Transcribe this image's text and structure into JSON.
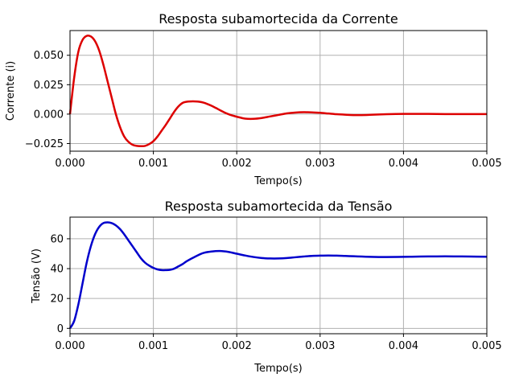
{
  "chart_data": [
    {
      "type": "line",
      "title": "Resposta subamortecida da Corrente",
      "xlabel": "Tempo(s)",
      "ylabel": "Corrente (i)",
      "xlim": [
        0,
        0.005
      ],
      "ylim": [
        -0.0315,
        0.071
      ],
      "xticks": [
        0,
        0.001,
        0.002,
        0.003,
        0.004,
        0.005
      ],
      "xtick_labels": [
        "0.000",
        "0.001",
        "0.002",
        "0.003",
        "0.004",
        "0.005"
      ],
      "yticks": [
        -0.025,
        0,
        0.025,
        0.05
      ],
      "ytick_labels": [
        "−0.025",
        "0.000",
        "0.025",
        "0.050"
      ],
      "grid": true,
      "series": [
        {
          "color": "#dd0000",
          "x": [
            0,
            5e-05,
            0.0001,
            0.00015,
            0.0002,
            0.00025,
            0.0003,
            0.00035,
            0.0004,
            0.00045,
            0.0005,
            0.00055,
            0.0006,
            0.00065,
            0.0007,
            0.00075,
            0.0008,
            0.00085,
            0.0009,
            0.00095,
            0.001,
            0.00105,
            0.0011,
            0.00115,
            0.0012,
            0.00125,
            0.0013,
            0.00135,
            0.0014,
            0.00145,
            0.0015,
            0.00155,
            0.0016,
            0.00165,
            0.0017,
            0.00175,
            0.0018,
            0.00185,
            0.0019,
            0.00195,
            0.002,
            0.0021,
            0.0022,
            0.0023,
            0.0024,
            0.0025,
            0.0026,
            0.0027,
            0.0028,
            0.0029,
            0.003,
            0.0031,
            0.0032,
            0.0033,
            0.0034,
            0.0035,
            0.0036,
            0.0038,
            0.004,
            0.0042,
            0.0044,
            0.0046,
            0.0048,
            0.005
          ],
          "y": [
            0,
            0.031,
            0.053,
            0.063,
            0.0665,
            0.066,
            0.062,
            0.054,
            0.042,
            0.028,
            0.014,
            0.0,
            -0.011,
            -0.019,
            -0.0235,
            -0.026,
            -0.027,
            -0.0272,
            -0.027,
            -0.0255,
            -0.023,
            -0.019,
            -0.014,
            -0.009,
            -0.0035,
            0.002,
            0.0065,
            0.0095,
            0.0105,
            0.0108,
            0.0108,
            0.0105,
            0.0098,
            0.0085,
            0.007,
            0.0052,
            0.0033,
            0.0015,
            0.0,
            -0.0012,
            -0.0022,
            -0.0038,
            -0.004,
            -0.0033,
            -0.002,
            -0.0007,
            0.0006,
            0.0013,
            0.0016,
            0.0015,
            0.0011,
            0.0005,
            -0.0001,
            -0.0005,
            -0.0008,
            -0.0008,
            -0.0006,
            -0.0001,
            0.0002,
            0.0002,
            0.0001,
            0.0,
            0.0,
            0.0
          ]
        }
      ]
    },
    {
      "type": "line",
      "title": "Resposta subamortecida da Tensão",
      "xlabel": "Tempo(s)",
      "ylabel": "Tensão (V)",
      "xlim": [
        0,
        0.005
      ],
      "ylim": [
        -3.6,
        74.5
      ],
      "xticks": [
        0,
        0.001,
        0.002,
        0.003,
        0.004,
        0.005
      ],
      "xtick_labels": [
        "0.000",
        "0.001",
        "0.002",
        "0.003",
        "0.004",
        "0.005"
      ],
      "yticks": [
        0,
        20,
        40,
        60
      ],
      "ytick_labels": [
        "0",
        "20",
        "40",
        "60"
      ],
      "grid": true,
      "series": [
        {
          "color": "#0000cc",
          "x": [
            0,
            5e-05,
            0.0001,
            0.00015,
            0.0002,
            0.00025,
            0.0003,
            0.00035,
            0.0004,
            0.00045,
            0.0005,
            0.00055,
            0.0006,
            0.00065,
            0.0007,
            0.00075,
            0.0008,
            0.00085,
            0.0009,
            0.00095,
            0.001,
            0.00105,
            0.0011,
            0.00115,
            0.0012,
            0.00125,
            0.0013,
            0.00135,
            0.0014,
            0.0015,
            0.0016,
            0.0017,
            0.0018,
            0.0019,
            0.002,
            0.0021,
            0.0022,
            0.0023,
            0.0024,
            0.0025,
            0.0026,
            0.0027,
            0.0028,
            0.0029,
            0.003,
            0.0031,
            0.0032,
            0.0033,
            0.0034,
            0.0035,
            0.0036,
            0.0037,
            0.0038,
            0.004,
            0.0042,
            0.0044,
            0.0046,
            0.0048,
            0.005
          ],
          "y": [
            0,
            5,
            16,
            30,
            44,
            55,
            63,
            68,
            70.5,
            71,
            70.5,
            69,
            66.5,
            63,
            59,
            55,
            51,
            47,
            44,
            42,
            40.5,
            39.5,
            39,
            39,
            39.2,
            40,
            41.5,
            43,
            45,
            48,
            50.5,
            51.5,
            51.8,
            51.2,
            50,
            48.8,
            47.8,
            47.1,
            46.8,
            46.8,
            47.1,
            47.6,
            48.1,
            48.5,
            48.7,
            48.8,
            48.7,
            48.5,
            48.3,
            48.1,
            47.9,
            47.8,
            47.8,
            47.9,
            48.1,
            48.2,
            48.2,
            48.1,
            48.0
          ]
        }
      ]
    }
  ]
}
